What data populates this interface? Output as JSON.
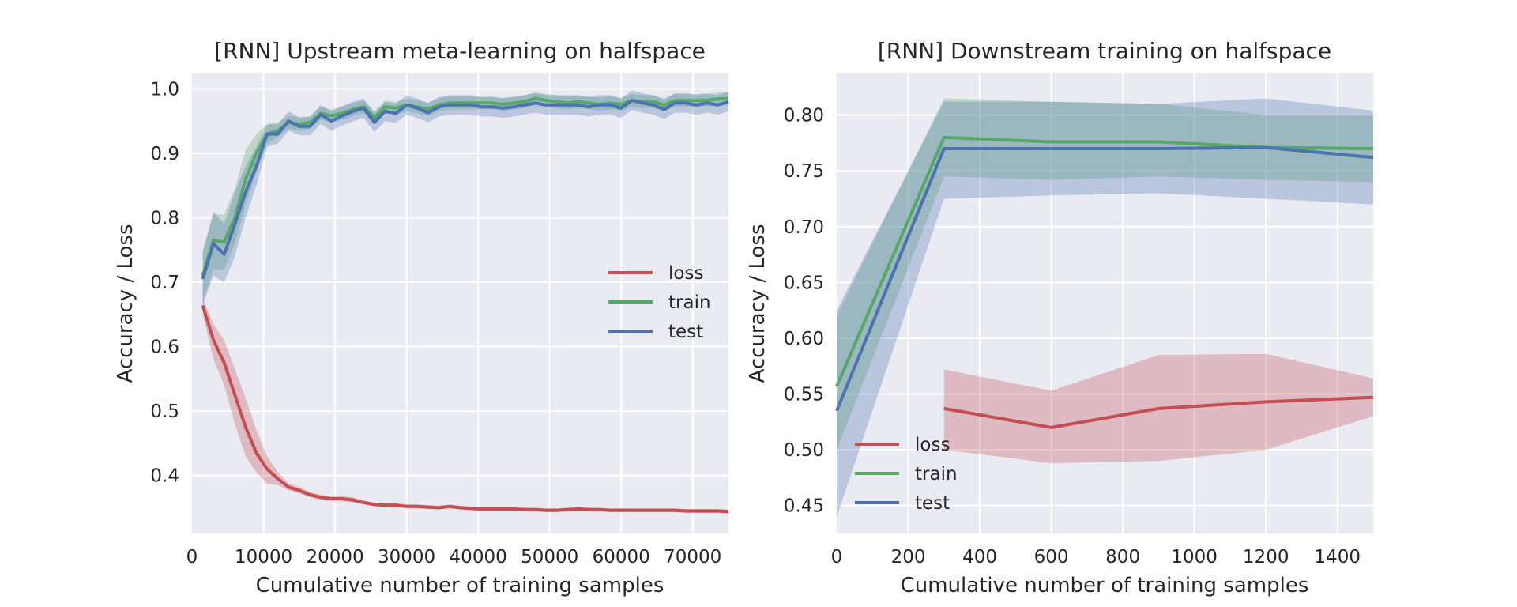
{
  "colors": {
    "background": "#eaeaf2",
    "grid": "#ffffff",
    "loss": "#c44e52",
    "train": "#55a868",
    "test": "#4c72b0"
  },
  "chart_data": [
    {
      "type": "line",
      "title": "[RNN] Upstream meta-learning on halfspace",
      "xlabel": "Cumulative number of training samples",
      "ylabel": "Accuracy / Loss",
      "xlim": [
        0,
        75000
      ],
      "ylim": [
        0.31,
        1.025
      ],
      "xticks": [
        0,
        10000,
        20000,
        30000,
        40000,
        50000,
        60000,
        70000
      ],
      "yticks": [
        0.4,
        0.5,
        0.6,
        0.7,
        0.8,
        0.9,
        1.0
      ],
      "grid": true,
      "legend_position": "center-right",
      "x": [
        1500,
        3000,
        4500,
        6000,
        7500,
        9000,
        10500,
        12000,
        13500,
        15000,
        16500,
        18000,
        19500,
        21000,
        22500,
        24000,
        25500,
        27000,
        28500,
        30000,
        31500,
        33000,
        34500,
        36000,
        37500,
        39000,
        40500,
        42000,
        43500,
        45000,
        46500,
        48000,
        49500,
        51000,
        52500,
        54000,
        55500,
        57000,
        58500,
        60000,
        61500,
        63000,
        64500,
        66000,
        67500,
        69000,
        70500,
        72000,
        73500,
        75000
      ],
      "series": [
        {
          "name": "loss",
          "color_key": "loss",
          "values": [
            0.664,
            0.61,
            0.575,
            0.525,
            0.475,
            0.435,
            0.41,
            0.395,
            0.382,
            0.377,
            0.37,
            0.366,
            0.364,
            0.364,
            0.362,
            0.358,
            0.355,
            0.354,
            0.354,
            0.352,
            0.352,
            0.351,
            0.35,
            0.352,
            0.35,
            0.349,
            0.348,
            0.348,
            0.348,
            0.348,
            0.347,
            0.347,
            0.346,
            0.346,
            0.347,
            0.348,
            0.347,
            0.347,
            0.346,
            0.346,
            0.346,
            0.346,
            0.346,
            0.346,
            0.346,
            0.345,
            0.345,
            0.345,
            0.345,
            0.344
          ],
          "lower": [
            0.65,
            0.58,
            0.54,
            0.48,
            0.43,
            0.405,
            0.387,
            0.385,
            0.377,
            0.372,
            0.366,
            0.362,
            0.36,
            0.36,
            0.358,
            0.355,
            0.352,
            0.351,
            0.351,
            0.349,
            0.349,
            0.348,
            0.347,
            0.349,
            0.347,
            0.346,
            0.345,
            0.345,
            0.345,
            0.345,
            0.344,
            0.344,
            0.343,
            0.343,
            0.344,
            0.345,
            0.344,
            0.344,
            0.343,
            0.343,
            0.343,
            0.343,
            0.343,
            0.343,
            0.343,
            0.342,
            0.342,
            0.342,
            0.342,
            0.341
          ],
          "upper": [
            0.675,
            0.635,
            0.61,
            0.565,
            0.52,
            0.47,
            0.43,
            0.405,
            0.388,
            0.382,
            0.374,
            0.37,
            0.368,
            0.368,
            0.366,
            0.361,
            0.358,
            0.357,
            0.357,
            0.355,
            0.355,
            0.354,
            0.353,
            0.355,
            0.353,
            0.352,
            0.351,
            0.351,
            0.351,
            0.351,
            0.35,
            0.35,
            0.349,
            0.349,
            0.35,
            0.351,
            0.35,
            0.35,
            0.349,
            0.349,
            0.349,
            0.349,
            0.349,
            0.349,
            0.349,
            0.348,
            0.348,
            0.348,
            0.348,
            0.347
          ]
        },
        {
          "name": "train",
          "color_key": "train",
          "values": [
            0.71,
            0.765,
            0.762,
            0.8,
            0.86,
            0.9,
            0.93,
            0.935,
            0.948,
            0.945,
            0.948,
            0.962,
            0.958,
            0.962,
            0.968,
            0.972,
            0.955,
            0.972,
            0.97,
            0.975,
            0.972,
            0.968,
            0.975,
            0.978,
            0.978,
            0.978,
            0.978,
            0.978,
            0.976,
            0.978,
            0.98,
            0.985,
            0.982,
            0.98,
            0.978,
            0.98,
            0.978,
            0.976,
            0.978,
            0.976,
            0.982,
            0.98,
            0.98,
            0.975,
            0.982,
            0.982,
            0.982,
            0.982,
            0.984,
            0.985
          ],
          "lower": [
            0.67,
            0.72,
            0.72,
            0.76,
            0.82,
            0.87,
            0.915,
            0.925,
            0.938,
            0.935,
            0.938,
            0.952,
            0.948,
            0.952,
            0.958,
            0.962,
            0.945,
            0.962,
            0.96,
            0.965,
            0.962,
            0.958,
            0.965,
            0.968,
            0.968,
            0.968,
            0.968,
            0.968,
            0.966,
            0.968,
            0.97,
            0.975,
            0.972,
            0.97,
            0.968,
            0.97,
            0.968,
            0.966,
            0.968,
            0.966,
            0.972,
            0.97,
            0.97,
            0.965,
            0.972,
            0.972,
            0.972,
            0.972,
            0.974,
            0.975
          ],
          "upper": [
            0.75,
            0.805,
            0.805,
            0.845,
            0.905,
            0.93,
            0.945,
            0.948,
            0.958,
            0.955,
            0.958,
            0.972,
            0.968,
            0.972,
            0.978,
            0.982,
            0.965,
            0.982,
            0.98,
            0.985,
            0.982,
            0.978,
            0.985,
            0.988,
            0.988,
            0.988,
            0.988,
            0.988,
            0.986,
            0.988,
            0.99,
            0.995,
            0.992,
            0.99,
            0.988,
            0.99,
            0.988,
            0.986,
            0.988,
            0.986,
            0.992,
            0.99,
            0.99,
            0.985,
            0.992,
            0.992,
            0.992,
            0.992,
            0.994,
            0.995
          ]
        },
        {
          "name": "test",
          "color_key": "test",
          "values": [
            0.705,
            0.76,
            0.743,
            0.79,
            0.84,
            0.88,
            0.93,
            0.93,
            0.95,
            0.942,
            0.942,
            0.96,
            0.95,
            0.958,
            0.965,
            0.97,
            0.948,
            0.965,
            0.962,
            0.975,
            0.97,
            0.963,
            0.972,
            0.975,
            0.975,
            0.975,
            0.972,
            0.972,
            0.97,
            0.972,
            0.975,
            0.978,
            0.975,
            0.975,
            0.975,
            0.975,
            0.972,
            0.975,
            0.975,
            0.97,
            0.982,
            0.978,
            0.975,
            0.968,
            0.978,
            0.978,
            0.975,
            0.978,
            0.975,
            0.98
          ],
          "lower": [
            0.665,
            0.71,
            0.7,
            0.74,
            0.8,
            0.85,
            0.91,
            0.915,
            0.935,
            0.928,
            0.928,
            0.945,
            0.935,
            0.943,
            0.95,
            0.955,
            0.933,
            0.95,
            0.947,
            0.96,
            0.955,
            0.948,
            0.957,
            0.96,
            0.96,
            0.96,
            0.957,
            0.957,
            0.955,
            0.957,
            0.96,
            0.963,
            0.96,
            0.96,
            0.96,
            0.96,
            0.957,
            0.96,
            0.96,
            0.955,
            0.967,
            0.963,
            0.96,
            0.953,
            0.963,
            0.963,
            0.96,
            0.963,
            0.96,
            0.965
          ],
          "upper": [
            0.745,
            0.81,
            0.79,
            0.84,
            0.88,
            0.91,
            0.945,
            0.945,
            0.965,
            0.956,
            0.956,
            0.975,
            0.965,
            0.973,
            0.98,
            0.985,
            0.963,
            0.98,
            0.977,
            0.99,
            0.985,
            0.978,
            0.987,
            0.99,
            0.99,
            0.99,
            0.987,
            0.987,
            0.985,
            0.987,
            0.99,
            0.993,
            0.99,
            0.99,
            0.99,
            0.99,
            0.987,
            0.99,
            0.99,
            0.985,
            0.997,
            0.993,
            0.99,
            0.983,
            0.993,
            0.993,
            0.99,
            0.993,
            0.99,
            0.995
          ]
        }
      ]
    },
    {
      "type": "line",
      "title": "[RNN] Downstream training on halfspace",
      "xlabel": "Cumulative number of training samples",
      "ylabel": "Accuracy / Loss",
      "xlim": [
        0,
        1500
      ],
      "ylim": [
        0.425,
        0.838
      ],
      "xticks": [
        0,
        200,
        400,
        600,
        800,
        1000,
        1200,
        1400
      ],
      "yticks": [
        0.45,
        0.5,
        0.55,
        0.6,
        0.65,
        0.7,
        0.75,
        0.8
      ],
      "ytick_labels": [
        "0.45",
        "0.50",
        "0.55",
        "0.60",
        "0.65",
        "0.70",
        "0.75",
        "0.80"
      ],
      "grid": true,
      "legend_position": "lower-left",
      "series": [
        {
          "name": "loss",
          "color_key": "loss",
          "x": [
            300,
            600,
            900,
            1200,
            1500
          ],
          "values": [
            0.537,
            0.52,
            0.537,
            0.543,
            0.547
          ],
          "lower": [
            0.5,
            0.488,
            0.49,
            0.5,
            0.53
          ],
          "upper": [
            0.572,
            0.553,
            0.585,
            0.586,
            0.564
          ]
        },
        {
          "name": "train",
          "color_key": "train",
          "x": [
            0,
            300,
            600,
            900,
            1200,
            1500
          ],
          "values": [
            0.557,
            0.78,
            0.776,
            0.776,
            0.771,
            0.77
          ],
          "lower": [
            0.5,
            0.745,
            0.742,
            0.745,
            0.742,
            0.74
          ],
          "upper": [
            0.62,
            0.815,
            0.812,
            0.81,
            0.8,
            0.8
          ]
        },
        {
          "name": "test",
          "color_key": "test",
          "x": [
            0,
            300,
            600,
            900,
            1200,
            1500
          ],
          "values": [
            0.535,
            0.77,
            0.77,
            0.77,
            0.771,
            0.762
          ],
          "lower": [
            0.44,
            0.725,
            0.728,
            0.73,
            0.725,
            0.72
          ],
          "upper": [
            0.625,
            0.812,
            0.812,
            0.81,
            0.815,
            0.804
          ]
        }
      ]
    }
  ]
}
